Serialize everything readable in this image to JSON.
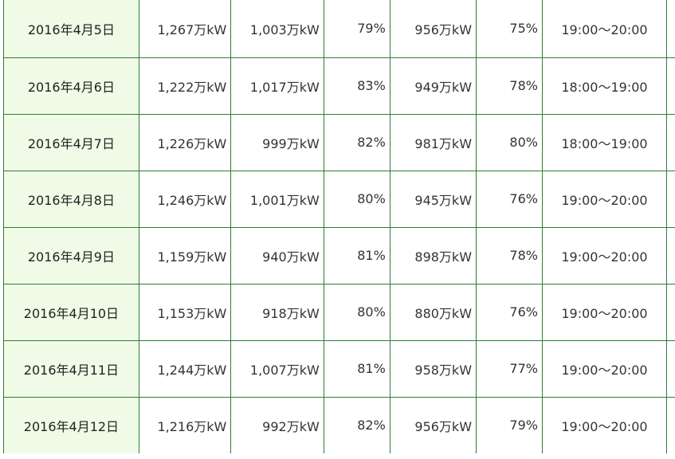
{
  "rows": [
    {
      "date": "2016年4月5日",
      "capacity": "1,267万kW",
      "peak_demand": "1,003万kW",
      "peak_rate": "79%",
      "hourly_demand": "956万kW",
      "hourly_rate": "75%",
      "time_slot": "19:00〜20:00"
    },
    {
      "date": "2016年4月6日",
      "capacity": "1,222万kW",
      "peak_demand": "1,017万kW",
      "peak_rate": "83%",
      "hourly_demand": "949万kW",
      "hourly_rate": "78%",
      "time_slot": "18:00〜19:00"
    },
    {
      "date": "2016年4月7日",
      "capacity": "1,226万kW",
      "peak_demand": "999万kW",
      "peak_rate": "82%",
      "hourly_demand": "981万kW",
      "hourly_rate": "80%",
      "time_slot": "18:00〜19:00"
    },
    {
      "date": "2016年4月8日",
      "capacity": "1,246万kW",
      "peak_demand": "1,001万kW",
      "peak_rate": "80%",
      "hourly_demand": "945万kW",
      "hourly_rate": "76%",
      "time_slot": "19:00〜20:00"
    },
    {
      "date": "2016年4月9日",
      "capacity": "1,159万kW",
      "peak_demand": "940万kW",
      "peak_rate": "81%",
      "hourly_demand": "898万kW",
      "hourly_rate": "78%",
      "time_slot": "19:00〜20:00"
    },
    {
      "date": "2016年4月10日",
      "capacity": "1,153万kW",
      "peak_demand": "918万kW",
      "peak_rate": "80%",
      "hourly_demand": "880万kW",
      "hourly_rate": "76%",
      "time_slot": "19:00〜20:00"
    },
    {
      "date": "2016年4月11日",
      "capacity": "1,244万kW",
      "peak_demand": "1,007万kW",
      "peak_rate": "81%",
      "hourly_demand": "958万kW",
      "hourly_rate": "77%",
      "time_slot": "19:00〜20:00"
    },
    {
      "date": "2016年4月12日",
      "capacity": "1,216万kW",
      "peak_demand": "992万kW",
      "peak_rate": "82%",
      "hourly_demand": "956万kW",
      "hourly_rate": "79%",
      "time_slot": "19:00〜20:00"
    }
  ],
  "colors": {
    "border": "#2e7d32",
    "date_cell_bg": "#effbe6",
    "text": "#333333"
  }
}
